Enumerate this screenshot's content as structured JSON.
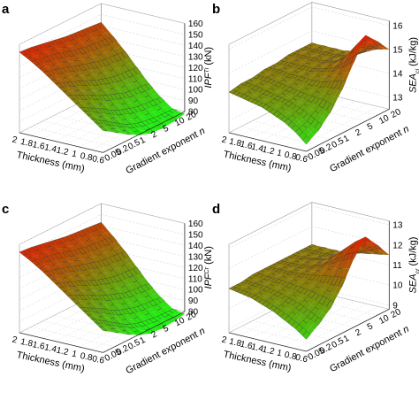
{
  "panel_letters": [
    "a",
    "b",
    "c",
    "d"
  ],
  "chart_data": [
    {
      "type": "surface3d",
      "panel": "a",
      "xlabel": "Thickness (mm)",
      "ylabel": "Gradient exponent n",
      "zlabel": "IPF",
      "zlabel_sup": "Ti",
      "zlabel_unit": "(kN)",
      "xticks": [
        "2",
        "1.8",
        "1.6",
        "1.4",
        "1.2",
        "1",
        "0.8",
        "0.6"
      ],
      "yticks": [
        "0.05",
        "0.2",
        "0.5",
        "1",
        "2",
        "5",
        "10",
        "20"
      ],
      "zticks": [
        "80",
        "90",
        "100",
        "110",
        "120",
        "130",
        "140",
        "150",
        "160"
      ],
      "zlim": [
        80,
        160
      ],
      "thickness": [
        2.0,
        1.8,
        1.6,
        1.4,
        1.2,
        1.0,
        0.8,
        0.6
      ],
      "gradient_exponent": [
        0.05,
        0.2,
        0.5,
        1,
        2,
        5,
        10,
        20
      ],
      "z_values": [
        [
          153,
          152,
          150,
          148,
          146,
          145,
          144,
          143
        ],
        [
          147,
          145,
          143,
          140,
          137,
          135,
          134,
          133
        ],
        [
          140,
          137,
          134,
          130,
          127,
          124,
          123,
          122
        ],
        [
          132,
          128,
          124,
          119,
          115,
          112,
          111,
          110
        ],
        [
          124,
          119,
          114,
          108,
          104,
          100,
          99,
          98
        ],
        [
          116,
          110,
          104,
          97,
          93,
          90,
          89,
          88
        ],
        [
          108,
          101,
          94,
          87,
          83,
          81,
          80,
          80
        ],
        [
          100,
          93,
          86,
          80,
          76,
          75,
          76,
          78
        ]
      ],
      "colors": {
        "low": "#22ee11",
        "high": "#ee1100"
      }
    },
    {
      "type": "surface3d",
      "panel": "b",
      "xlabel": "Thickness (mm)",
      "ylabel": "Gradient exponent n",
      "zlabel": "SEA",
      "zlabel_sub": "ci",
      "zlabel_unit": "(kJ/kg)",
      "xticks": [
        "2",
        "1.8",
        "1.6",
        "1.4",
        "1.2",
        "1",
        "0.8",
        "0.6"
      ],
      "yticks": [
        "0.05",
        "0.2",
        "0.5",
        "1",
        "2",
        "5",
        "10",
        "20"
      ],
      "zticks": [
        "13",
        "14",
        "15",
        "16"
      ],
      "zlim": [
        12.5,
        16.2
      ],
      "thickness": [
        2.0,
        1.8,
        1.6,
        1.4,
        1.2,
        1.0,
        0.8,
        0.6
      ],
      "gradient_exponent": [
        0.05,
        0.2,
        0.5,
        1,
        2,
        5,
        10,
        20
      ],
      "z_values": [
        [
          14.2,
          14.3,
          14.3,
          14.4,
          14.4,
          14.5,
          14.5,
          14.5
        ],
        [
          14.1,
          14.2,
          14.3,
          14.4,
          14.4,
          14.5,
          14.5,
          14.5
        ],
        [
          14.0,
          14.1,
          14.2,
          14.3,
          14.4,
          14.5,
          14.5,
          14.5
        ],
        [
          13.9,
          14.0,
          14.1,
          14.3,
          14.4,
          14.5,
          14.5,
          14.5
        ],
        [
          13.7,
          13.9,
          14.0,
          14.2,
          14.5,
          14.6,
          14.6,
          14.6
        ],
        [
          13.5,
          13.7,
          13.9,
          14.2,
          14.6,
          14.9,
          14.8,
          14.7
        ],
        [
          13.2,
          13.4,
          13.8,
          14.3,
          14.9,
          15.5,
          15.2,
          14.9
        ],
        [
          12.8,
          13.1,
          13.6,
          14.3,
          15.2,
          16.1,
          15.6,
          15.0
        ]
      ],
      "colors": {
        "low": "#22ee11",
        "high": "#ee1100"
      }
    },
    {
      "type": "surface3d",
      "panel": "c",
      "xlabel": "Thickness (mm)",
      "ylabel": "Gradient exponent n",
      "zlabel": "IPF",
      "zlabel_sup": "Cr",
      "zlabel_unit": "(kN)",
      "xticks": [
        "2",
        "1.8",
        "1.6",
        "1.4",
        "1.2",
        "1",
        "0.8",
        "0.6"
      ],
      "yticks": [
        "0.05",
        "0.2",
        "0.5",
        "1",
        "2",
        "5",
        "10",
        "20"
      ],
      "zticks": [
        "80",
        "90",
        "100",
        "110",
        "120",
        "130",
        "140",
        "150",
        "160"
      ],
      "zlim": [
        80,
        160
      ],
      "thickness": [
        2.0,
        1.8,
        1.6,
        1.4,
        1.2,
        1.0,
        0.8,
        0.6
      ],
      "gradient_exponent": [
        0.05,
        0.2,
        0.5,
        1,
        2,
        5,
        10,
        20
      ],
      "z_values": [
        [
          153,
          152,
          150,
          148,
          146,
          145,
          144,
          143
        ],
        [
          147,
          145,
          143,
          140,
          137,
          135,
          134,
          133
        ],
        [
          140,
          137,
          134,
          130,
          127,
          124,
          123,
          122
        ],
        [
          132,
          128,
          124,
          119,
          115,
          112,
          111,
          110
        ],
        [
          124,
          119,
          114,
          108,
          104,
          100,
          99,
          98
        ],
        [
          116,
          110,
          104,
          97,
          93,
          90,
          89,
          88
        ],
        [
          108,
          101,
          94,
          87,
          83,
          81,
          80,
          80
        ],
        [
          100,
          93,
          86,
          80,
          76,
          75,
          76,
          78
        ]
      ],
      "colors": {
        "low": "#22ee11",
        "high": "#ee1100"
      }
    },
    {
      "type": "surface3d",
      "panel": "d",
      "xlabel": "Thickness (mm)",
      "ylabel": "Gradient exponent n",
      "zlabel": "SEA",
      "zlabel_sub": "cr",
      "zlabel_unit": "(kJ/kg)",
      "xticks": [
        "2",
        "1.8",
        "1.6",
        "1.4",
        "1.2",
        "1",
        "0.8",
        "0.6"
      ],
      "yticks": [
        "0.05",
        "0.2",
        "0.5",
        "1",
        "2",
        "5",
        "10",
        "20"
      ],
      "zticks": [
        "9",
        "10",
        "11",
        "12",
        "13"
      ],
      "zlim": [
        8.8,
        13.2
      ],
      "thickness": [
        2.0,
        1.8,
        1.6,
        1.4,
        1.2,
        1.0,
        0.8,
        0.6
      ],
      "gradient_exponent": [
        0.05,
        0.2,
        0.5,
        1,
        2,
        5,
        10,
        20
      ],
      "z_values": [
        [
          11.0,
          11.0,
          11.1,
          11.1,
          11.1,
          11.1,
          11.1,
          11.1
        ],
        [
          10.9,
          11.0,
          11.0,
          11.1,
          11.1,
          11.1,
          11.1,
          11.1
        ],
        [
          10.8,
          10.9,
          11.0,
          11.1,
          11.1,
          11.2,
          11.1,
          11.1
        ],
        [
          10.6,
          10.8,
          10.9,
          11.1,
          11.2,
          11.3,
          11.2,
          11.1
        ],
        [
          10.4,
          10.6,
          10.8,
          11.1,
          11.4,
          11.6,
          11.4,
          11.2
        ],
        [
          10.1,
          10.4,
          10.7,
          11.1,
          11.7,
          12.1,
          11.7,
          11.3
        ],
        [
          9.8,
          10.1,
          10.5,
          11.1,
          12.0,
          12.6,
          12.0,
          11.4
        ],
        [
          9.4,
          9.8,
          10.3,
          11.1,
          12.2,
          13.0,
          12.3,
          11.5
        ]
      ],
      "colors": {
        "low": "#22ee11",
        "high": "#ee1100"
      }
    }
  ]
}
